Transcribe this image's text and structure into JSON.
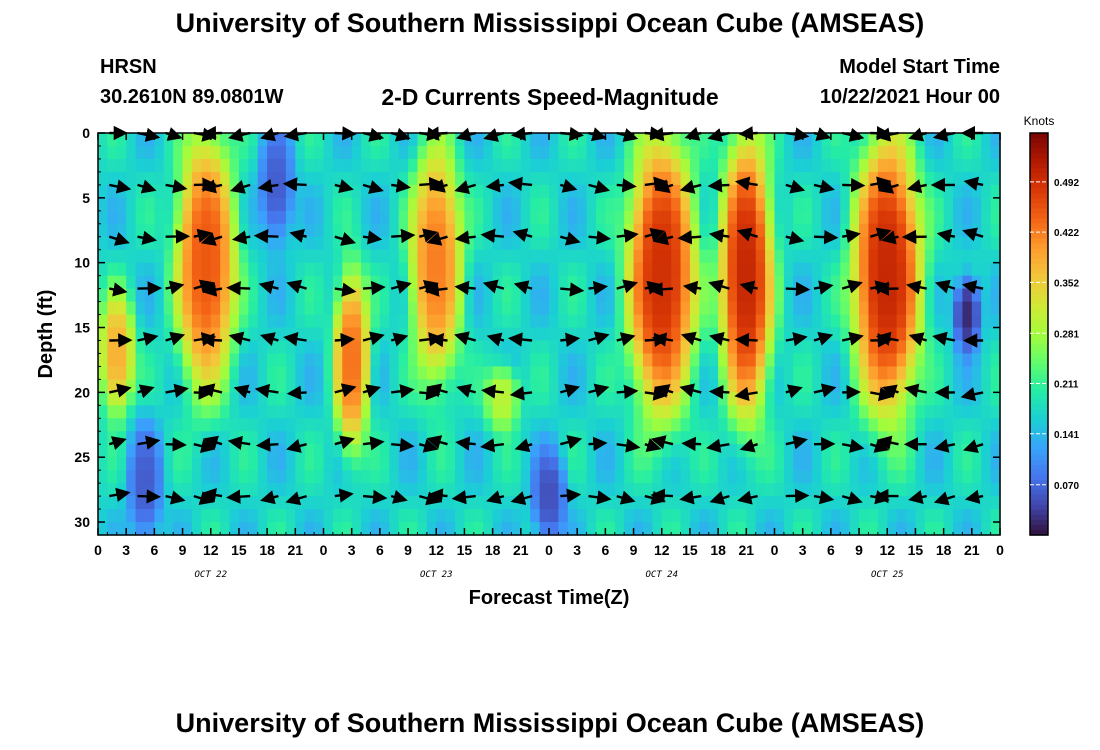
{
  "header": {
    "title": "University of Southern Mississippi Ocean Cube (AMSEAS)",
    "station": "HRSN",
    "coords": "30.2610N  89.0801W",
    "subtitle": "2-D Currents Speed-Magnitude",
    "model_start_label": "Model Start Time",
    "model_start_value": "10/22/2021 Hour 00"
  },
  "footer": {
    "title": "University of Southern Mississippi Ocean Cube (AMSEAS)"
  },
  "chart_data": {
    "type": "heatmap",
    "xlabel": "Forecast Time(Z)",
    "ylabel": "Depth (ft)",
    "x_tick_labels": [
      "0",
      "3",
      "6",
      "9",
      "12",
      "15",
      "18",
      "21",
      "0",
      "3",
      "6",
      "9",
      "12",
      "15",
      "18",
      "21",
      "0",
      "3",
      "6",
      "9",
      "12",
      "15",
      "18",
      "21",
      "0",
      "3",
      "6",
      "9",
      "12",
      "15",
      "18",
      "21",
      "0"
    ],
    "day_labels": [
      {
        "label": "OCT 22",
        "hour": 12
      },
      {
        "label": "OCT 23",
        "hour": 36
      },
      {
        "label": "OCT 24",
        "hour": 60
      },
      {
        "label": "OCT 25",
        "hour": 84
      }
    ],
    "xlim_hours": [
      0,
      96
    ],
    "ylim_ft": [
      0,
      31
    ],
    "y_ticks": [
      0,
      5,
      10,
      15,
      20,
      25,
      30
    ],
    "y_reversed": true,
    "colorbar": {
      "unit": "Knots",
      "range": [
        0,
        0.56
      ],
      "ticks": [
        "0.070",
        "0.141",
        "0.211",
        "0.281",
        "0.352",
        "0.422",
        "0.492"
      ],
      "tick_values": [
        0.07,
        0.141,
        0.211,
        0.281,
        0.352,
        0.422,
        0.492
      ],
      "colormap": [
        "#30123b",
        "#4145ab",
        "#4675ed",
        "#39a2fc",
        "#1bcfd4",
        "#24eca6",
        "#61fc6c",
        "#a4fc3b",
        "#d1e834",
        "#f3c63a",
        "#fe9b2d",
        "#f36315",
        "#d93806",
        "#b11901",
        "#7a0402"
      ]
    },
    "speed_field_note_free": [
      {
        "hours": [
          9,
          14
        ],
        "depth_ft": [
          0,
          20
        ],
        "speed": 0.45
      },
      {
        "hours": [
          1,
          3
        ],
        "depth_ft": [
          13,
          21
        ],
        "speed": 0.38
      },
      {
        "hours": [
          26,
          28
        ],
        "depth_ft": [
          11,
          24
        ],
        "speed": 0.43
      },
      {
        "hours": [
          34,
          38
        ],
        "depth_ft": [
          1,
          19
        ],
        "speed": 0.42
      },
      {
        "hours": [
          42,
          44
        ],
        "depth_ft": [
          19,
          22
        ],
        "speed": 0.3
      },
      {
        "hours": [
          57,
          63
        ],
        "depth_ft": [
          0,
          22
        ],
        "speed": 0.49
      },
      {
        "hours": [
          67,
          71
        ],
        "depth_ft": [
          0,
          22
        ],
        "speed": 0.5
      },
      {
        "hours": [
          81,
          87
        ],
        "depth_ft": [
          0,
          22
        ],
        "speed": 0.5
      },
      {
        "hours": [
          18,
          20
        ],
        "depth_ft": [
          0,
          8
        ],
        "speed": 0.06
      },
      {
        "hours": [
          4,
          6
        ],
        "depth_ft": [
          23,
          31
        ],
        "speed": 0.06
      },
      {
        "hours": [
          47,
          49
        ],
        "depth_ft": [
          25,
          31
        ],
        "speed": 0.05
      },
      {
        "hours": [
          92,
          93
        ],
        "depth_ft": [
          12,
          16
        ],
        "speed": 0.02
      }
    ],
    "vector_depths_ft": [
      0,
      4,
      8,
      12,
      16,
      20,
      24,
      28
    ]
  }
}
